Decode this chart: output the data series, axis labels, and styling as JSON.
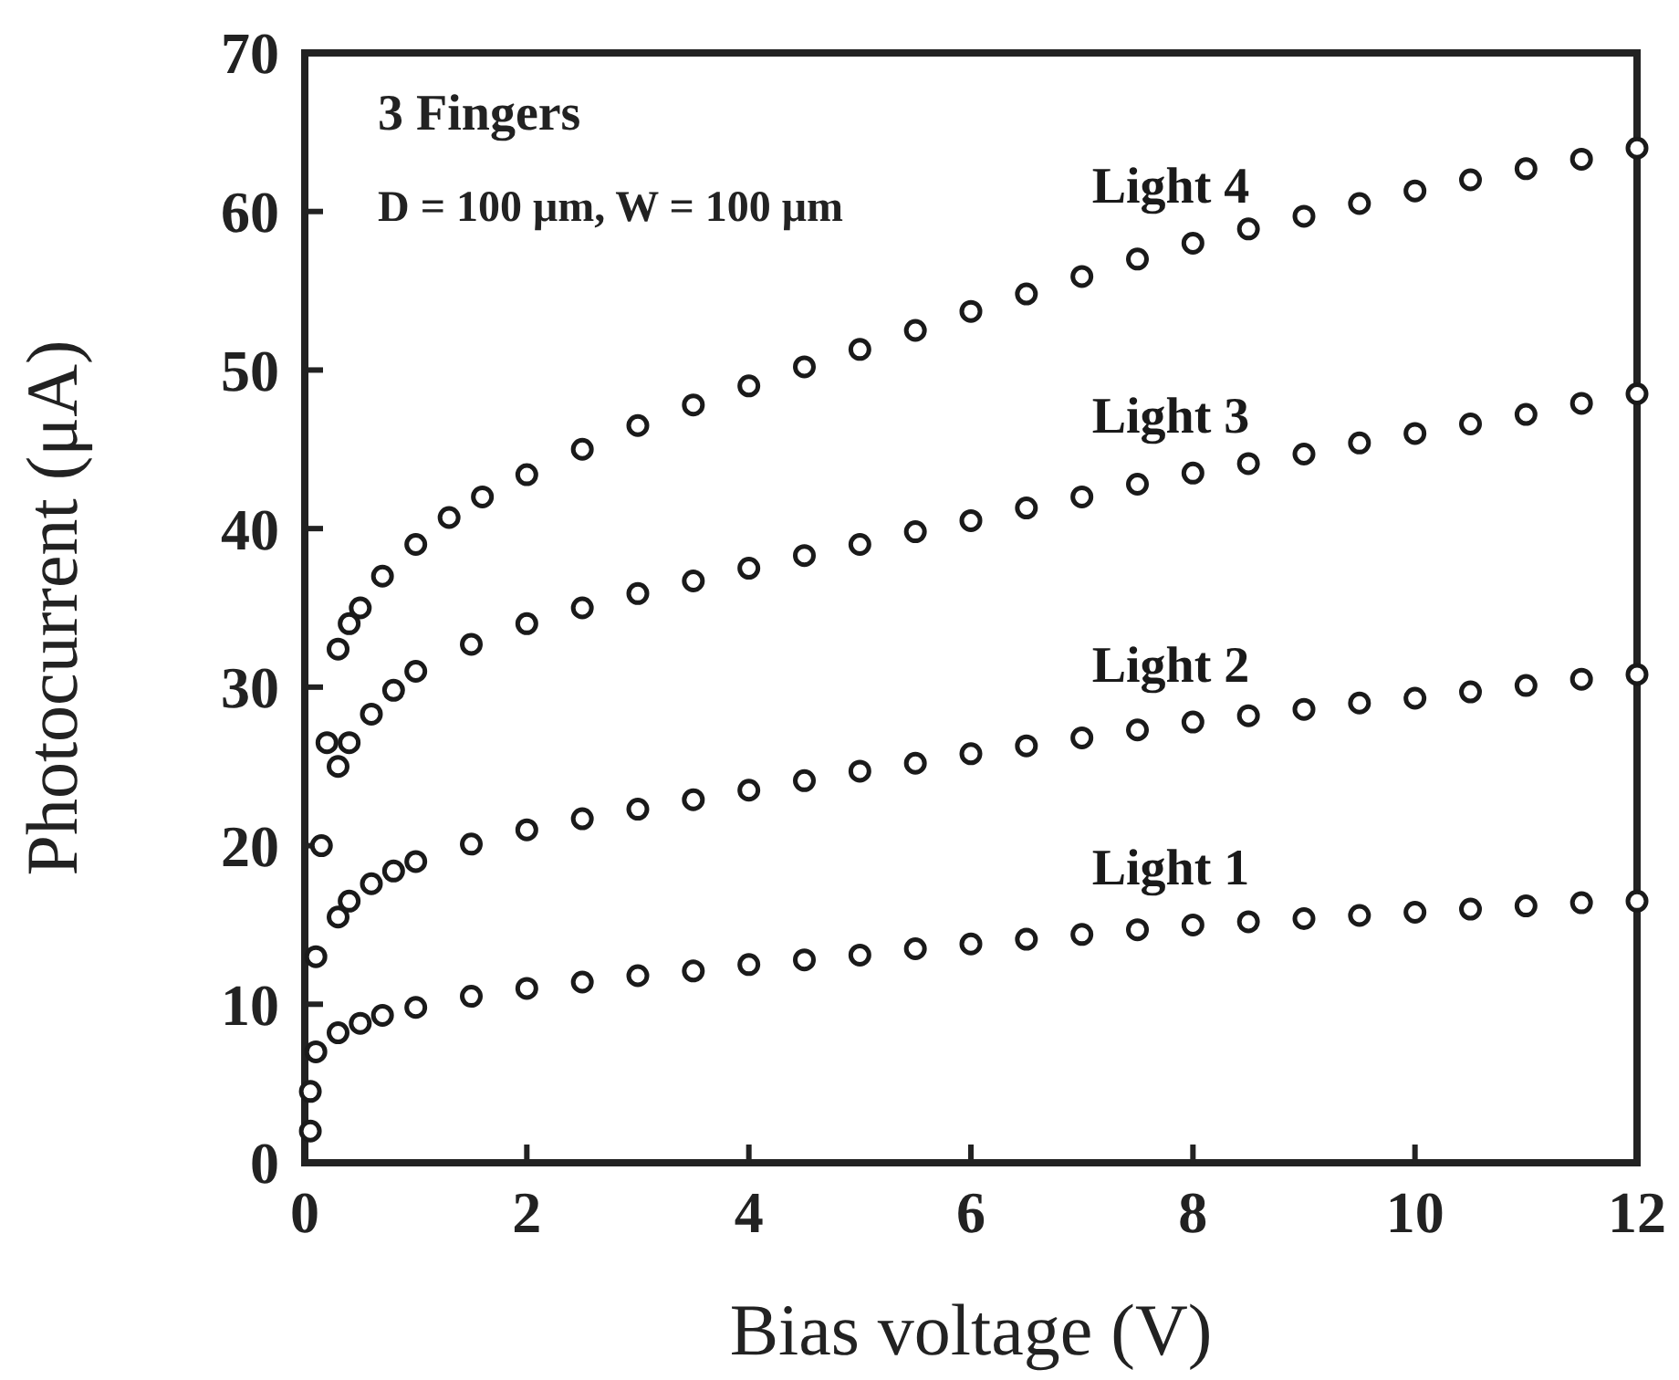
{
  "chart_data": {
    "type": "scatter",
    "xlabel": "Bias voltage (V)",
    "ylabel": "Photocurrent (μA)",
    "xlim": [
      0,
      12
    ],
    "ylim": [
      0,
      70
    ],
    "xticks": [
      0,
      2,
      4,
      6,
      8,
      10,
      12
    ],
    "yticks": [
      0,
      10,
      20,
      30,
      40,
      50,
      60,
      70
    ],
    "marker": "circle",
    "grid": false,
    "annotations": [
      "3 Fingers",
      "D = 100 μm, W = 100 μm"
    ],
    "series": [
      {
        "name": "Light 4",
        "color": "#1a1a1a",
        "x": [
          0.3,
          0.4,
          0.5,
          0.7,
          1,
          1.3,
          1.6,
          2,
          2.5,
          3,
          3.5,
          4,
          4.5,
          5,
          5.5,
          6,
          6.5,
          7,
          7.5,
          8,
          8.5,
          9,
          9.5,
          10,
          10.5,
          11,
          11.5,
          12
        ],
        "values": [
          32.4,
          34,
          35,
          37,
          39,
          40.7,
          42,
          43.4,
          45,
          46.5,
          47.8,
          49,
          50.2,
          51.3,
          52.5,
          53.7,
          54.8,
          55.9,
          57,
          58,
          58.9,
          59.7,
          60.5,
          61.3,
          62,
          62.7,
          63.3,
          64
        ]
      },
      {
        "name": "Light 3",
        "color": "#1a1a1a",
        "x": [
          0.2,
          0.3,
          0.4,
          0.6,
          0.8,
          1,
          1.5,
          2,
          2.5,
          3,
          3.5,
          4,
          4.5,
          5,
          5.5,
          6,
          6.5,
          7,
          7.5,
          8,
          8.5,
          9,
          9.5,
          10,
          10.5,
          11,
          11.5,
          12
        ],
        "values": [
          26.5,
          25,
          26.5,
          28.3,
          29.8,
          31,
          32.7,
          34,
          35,
          35.9,
          36.7,
          37.5,
          38.3,
          39,
          39.8,
          40.5,
          41.3,
          42,
          42.8,
          43.5,
          44.1,
          44.7,
          45.4,
          46,
          46.6,
          47.2,
          47.9,
          48.5
        ]
      },
      {
        "name": "Light 2",
        "color": "#1a1a1a",
        "x": [
          0.1,
          0.15,
          0.3,
          0.4,
          0.6,
          0.8,
          1,
          1.5,
          2,
          2.5,
          3,
          3.5,
          4,
          4.5,
          5,
          5.5,
          6,
          6.5,
          7,
          7.5,
          8,
          8.5,
          9,
          9.5,
          10,
          10.5,
          11,
          11.5,
          12
        ],
        "values": [
          13,
          20,
          15.5,
          16.5,
          17.6,
          18.4,
          19,
          20.1,
          21,
          21.7,
          22.3,
          22.9,
          23.5,
          24.1,
          24.7,
          25.2,
          25.8,
          26.3,
          26.8,
          27.3,
          27.8,
          28.2,
          28.6,
          29,
          29.3,
          29.7,
          30.1,
          30.5,
          30.8
        ]
      },
      {
        "name": "Light 1",
        "color": "#1a1a1a",
        "x": [
          0.05,
          0.05,
          0.1,
          0.3,
          0.5,
          0.7,
          1,
          1.5,
          2,
          2.5,
          3,
          3.5,
          4,
          4.5,
          5,
          5.5,
          6,
          6.5,
          7,
          7.5,
          8,
          8.5,
          9,
          9.5,
          10,
          10.5,
          11,
          11.5,
          12
        ],
        "values": [
          2,
          4.5,
          7,
          8.2,
          8.8,
          9.3,
          9.8,
          10.5,
          11,
          11.4,
          11.8,
          12.1,
          12.5,
          12.8,
          13.1,
          13.5,
          13.8,
          14.1,
          14.4,
          14.7,
          15,
          15.2,
          15.4,
          15.6,
          15.8,
          16,
          16.2,
          16.4,
          16.5
        ]
      }
    ]
  }
}
